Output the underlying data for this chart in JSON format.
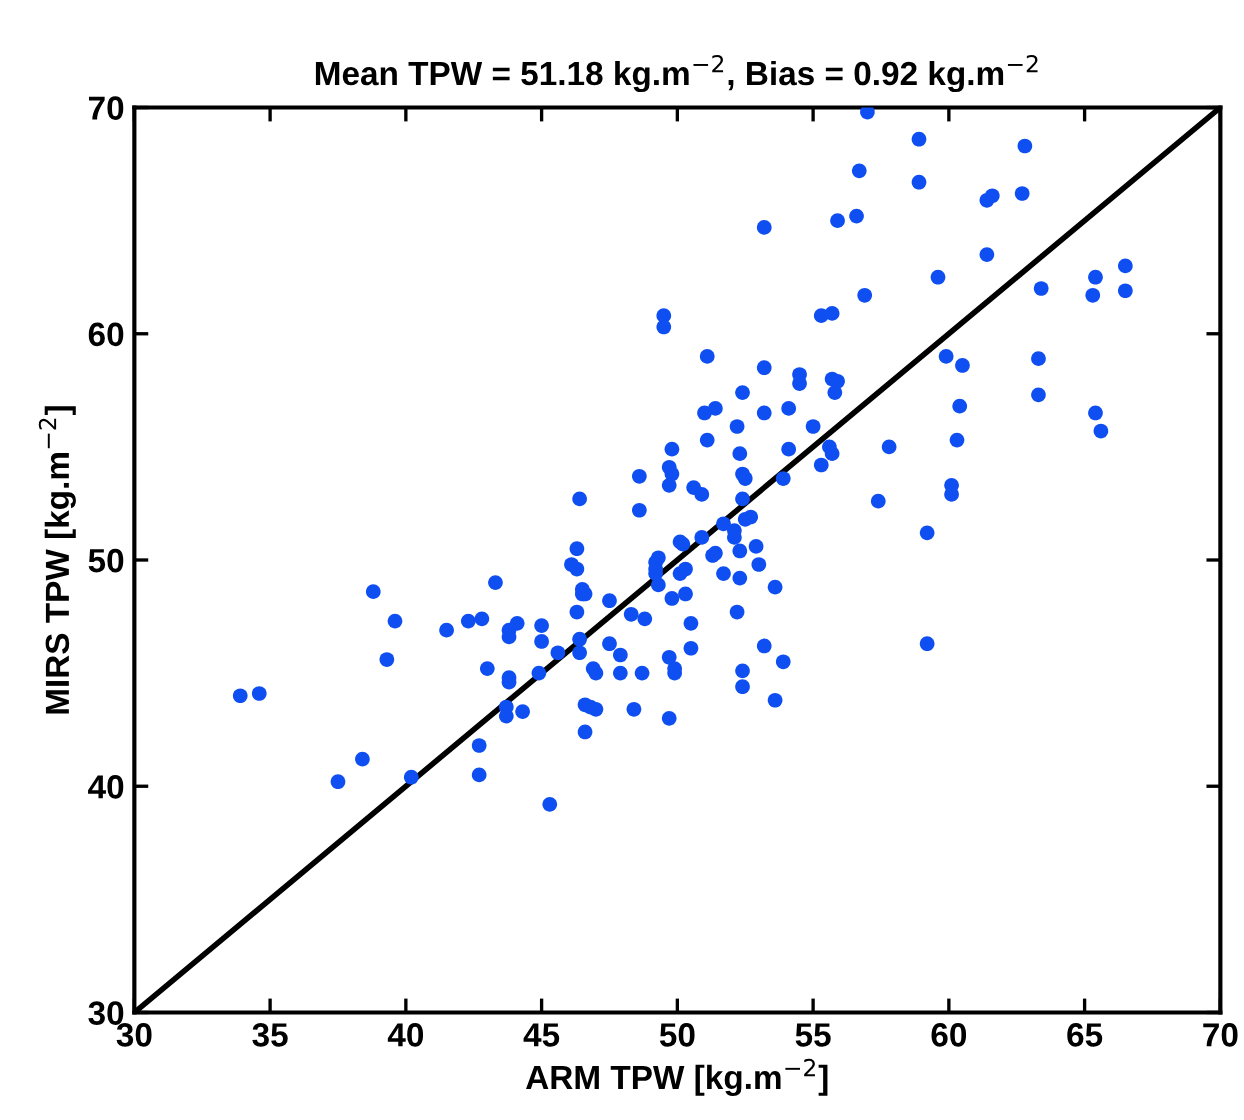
{
  "chart_data": {
    "type": "scatter",
    "title": "Mean TPW = 51.18 kg.m$^{−2}$, Bias = 0.92 kg.m$^{−2}$",
    "xlabel": "ARM TPW [kg.m$^{−2}$]",
    "ylabel": "MIRS TPW [kg.m$^{−2}$]",
    "xlim": [
      30,
      70
    ],
    "ylim": [
      30,
      70
    ],
    "xticks": [
      30,
      35,
      40,
      45,
      50,
      55,
      60,
      65,
      70
    ],
    "yticks": [
      30,
      40,
      50,
      60,
      70
    ],
    "grid": false,
    "marker": "circle",
    "series": [
      {
        "color": "#0f4ff2",
        "x": [
          57.0,
          58.9,
          62.8,
          56.7,
          58.9,
          61.4,
          61.6,
          62.7,
          53.2,
          55.9,
          56.6,
          61.4,
          59.6,
          56.9,
          55.3,
          55.7,
          63.4,
          65.4,
          66.5,
          65.3,
          66.5,
          49.5,
          49.5,
          51.1,
          51.0,
          51.4,
          51.1,
          49.8,
          49.7,
          49.8,
          48.6,
          49.7,
          50.6,
          50.9,
          46.4,
          48.6,
          50.1,
          50.9,
          46.3,
          49.3,
          51.4,
          46.1,
          46.3,
          49.2,
          50.3,
          50.1,
          38.8,
          43.3,
          46.5,
          47.5,
          59.9,
          60.5,
          53.2,
          54.5,
          54.5,
          55.7,
          55.9,
          55.8,
          63.3,
          63.3,
          52.4,
          53.2,
          54.1,
          52.2,
          55.0,
          60.4,
          65.4,
          65.6,
          52.3,
          54.1,
          55.6,
          55.7,
          57.8,
          60.3,
          52.4,
          52.5,
          53.9,
          55.3,
          52.4,
          52.7,
          52.5,
          60.1,
          60.1,
          57.4,
          51.7,
          52.1,
          52.1,
          52.9,
          52.3,
          51.3,
          53.0,
          51.7,
          52.3,
          53.6,
          59.2,
          59.2,
          52.2,
          53.2,
          53.9,
          52.4,
          52.4,
          53.6,
          50.5,
          50.5,
          50.3,
          33.9,
          34.6,
          39.6,
          39.3,
          38.4,
          37.5,
          40.2,
          41.5,
          42.3,
          42.8,
          43.0,
          43.8,
          43.8,
          44.1,
          43.8,
          43.8,
          43.7,
          43.7,
          44.3,
          42.7,
          42.7,
          45.0,
          45.0,
          44.9,
          45.3,
          45.6,
          46.3,
          46.5,
          46.6,
          46.4,
          46.4,
          46.9,
          47.0,
          46.6,
          46.8,
          47.0,
          46.6,
          47.5,
          47.9,
          47.9,
          48.7,
          48.4,
          48.3,
          48.8,
          49.2,
          49.2,
          49.3,
          49.8,
          49.7,
          49.9,
          49.9,
          49.7,
          50.2
        ],
        "values": [
          69.8,
          68.6,
          68.3,
          67.2,
          66.7,
          65.9,
          66.1,
          66.2,
          64.7,
          65.0,
          65.2,
          63.5,
          62.5,
          61.7,
          60.8,
          60.9,
          62.0,
          62.5,
          63.0,
          61.7,
          61.9,
          60.8,
          60.3,
          59.0,
          56.5,
          56.7,
          55.3,
          54.9,
          54.1,
          53.8,
          53.7,
          53.3,
          53.2,
          52.9,
          52.7,
          52.2,
          50.8,
          51.0,
          50.5,
          50.1,
          50.3,
          49.8,
          49.6,
          49.6,
          49.6,
          49.4,
          48.6,
          49.0,
          48.5,
          48.2,
          59.0,
          58.6,
          58.5,
          58.2,
          57.8,
          58.0,
          57.9,
          57.4,
          58.9,
          57.3,
          57.4,
          56.5,
          56.7,
          55.9,
          55.9,
          56.8,
          56.5,
          55.7,
          54.7,
          54.9,
          55.0,
          54.7,
          55.0,
          55.3,
          53.8,
          53.6,
          53.6,
          54.2,
          52.7,
          51.9,
          51.8,
          53.3,
          52.9,
          52.6,
          51.6,
          51.3,
          51.0,
          50.6,
          50.4,
          50.2,
          49.8,
          49.4,
          49.2,
          48.8,
          51.2,
          46.3,
          47.7,
          46.2,
          45.5,
          45.1,
          44.4,
          43.8,
          47.2,
          46.1,
          48.5,
          44.0,
          44.1,
          47.3,
          45.6,
          41.2,
          40.2,
          40.4,
          46.9,
          47.3,
          47.4,
          45.2,
          46.9,
          46.6,
          47.2,
          44.8,
          44.6,
          43.5,
          43.1,
          43.3,
          41.8,
          40.5,
          47.1,
          46.4,
          45.0,
          39.2,
          45.9,
          47.7,
          48.7,
          48.5,
          46.5,
          45.9,
          45.2,
          45.0,
          43.6,
          43.5,
          43.4,
          42.4,
          46.3,
          45.8,
          45.0,
          45.0,
          43.4,
          47.6,
          47.4,
          49.4,
          49.9,
          48.9,
          48.3,
          45.7,
          45.2,
          45.0,
          43.0,
          50.7
        ]
      },
      {
        "type": "line",
        "color": "#000000",
        "x": [
          30,
          70
        ],
        "values": [
          30,
          70
        ],
        "marker": "none",
        "line_style": "solid"
      }
    ]
  }
}
